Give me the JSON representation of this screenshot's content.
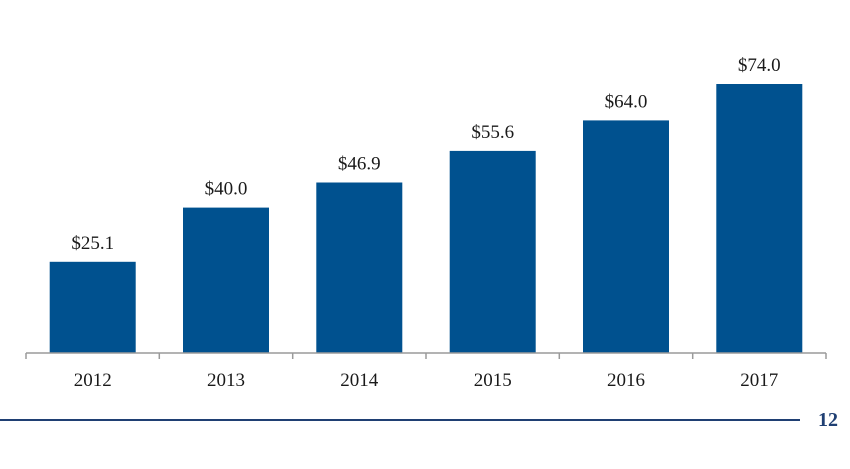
{
  "chart_data": {
    "type": "bar",
    "categories": [
      "2012",
      "2013",
      "2014",
      "2015",
      "2016",
      "2017"
    ],
    "values": [
      25.1,
      40.0,
      46.9,
      55.6,
      64.0,
      74.0
    ],
    "data_labels": [
      "$25.1",
      "$40.0",
      "$46.9",
      "$55.6",
      "$64.0",
      "$74.0"
    ],
    "title": "",
    "xlabel": "",
    "ylabel": "",
    "ylim": [
      0,
      74.0
    ],
    "grid": false,
    "bar_color": "#00518f",
    "axis_color": "#9a9a9a"
  },
  "footer": {
    "page_number": "12",
    "rule_color": "#1f3f73"
  }
}
